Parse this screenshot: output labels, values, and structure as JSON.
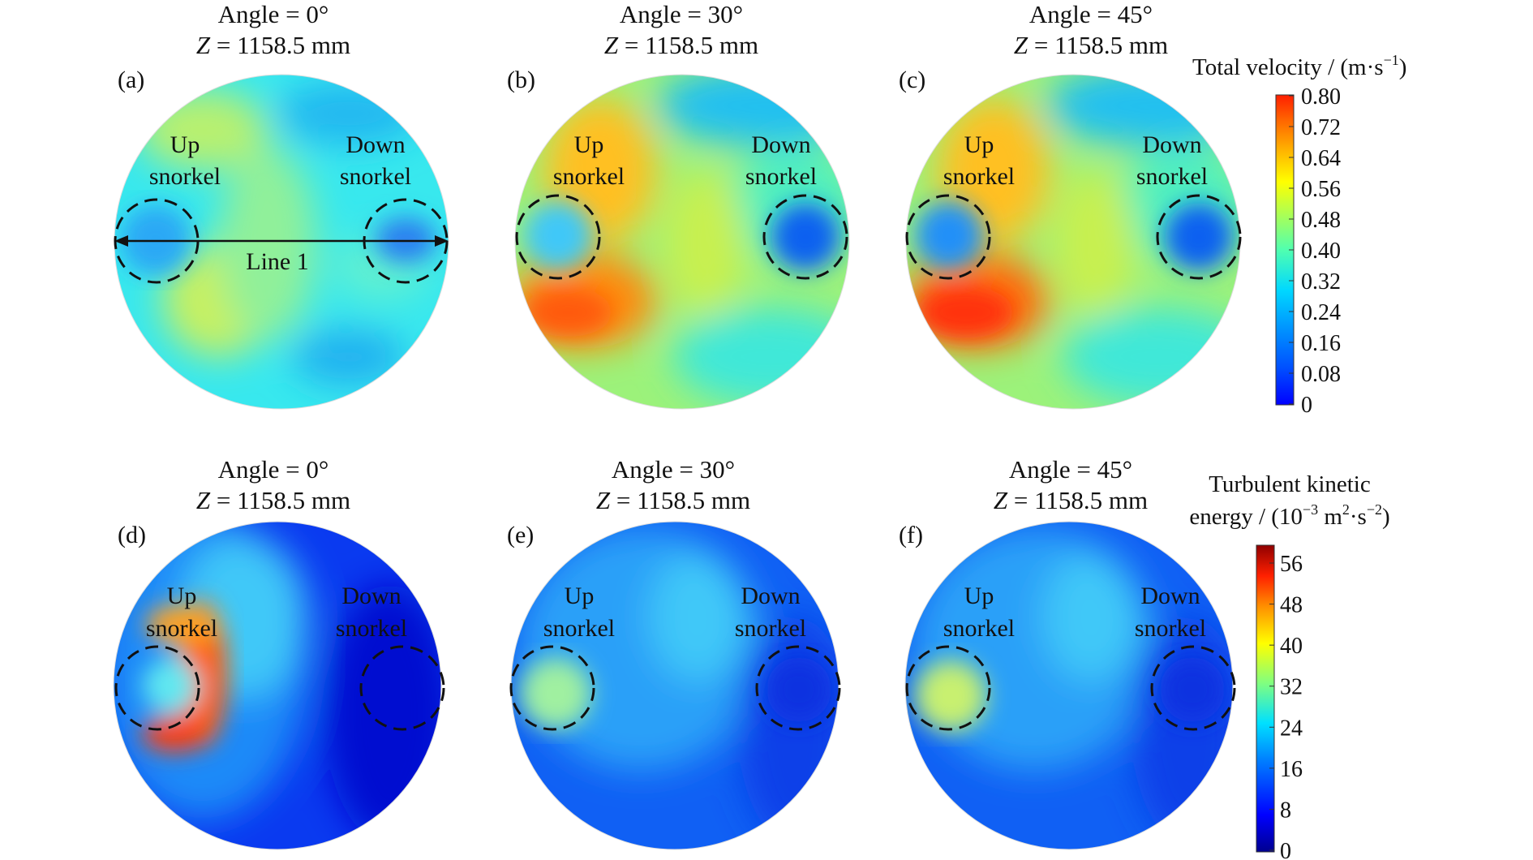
{
  "panels": [
    {
      "id": "a",
      "label": "(a)",
      "angle_text": "Angle = 0°",
      "z_var": "Z",
      "z_rest": " = 1158.5 mm",
      "up_line1": "Up",
      "up_line2": "snorkel",
      "down_line1": "Down",
      "down_line2": "snorkel",
      "line_label": "Line 1"
    },
    {
      "id": "b",
      "label": "(b)",
      "angle_text": "Angle = 30°",
      "z_var": "Z",
      "z_rest": " = 1158.5 mm",
      "up_line1": "Up",
      "up_line2": "snorkel",
      "down_line1": "Down",
      "down_line2": "snorkel"
    },
    {
      "id": "c",
      "label": "(c)",
      "angle_text": "Angle = 45°",
      "z_var": "Z",
      "z_rest": " = 1158.5 mm",
      "up_line1": "Up",
      "up_line2": "snorkel",
      "down_line1": "Down",
      "down_line2": "snorkel"
    },
    {
      "id": "d",
      "label": "(d)",
      "angle_text": "Angle = 0°",
      "z_var": "Z",
      "z_rest": " = 1158.5 mm",
      "up_line1": "Up",
      "up_line2": "snorkel",
      "down_line1": "Down",
      "down_line2": "snorkel"
    },
    {
      "id": "e",
      "label": "(e)",
      "angle_text": "Angle = 30°",
      "z_var": "Z",
      "z_rest": " = 1158.5 mm",
      "up_line1": "Up",
      "up_line2": "snorkel",
      "down_line1": "Down",
      "down_line2": "snorkel"
    },
    {
      "id": "f",
      "label": "(f)",
      "angle_text": "Angle = 45°",
      "z_var": "Z",
      "z_rest": " = 1158.5 mm",
      "up_line1": "Up",
      "up_line2": "snorkel",
      "down_line1": "Down",
      "down_line2": "snorkel"
    }
  ],
  "colorbar_velocity": {
    "title": "Total velocity / (m·s",
    "title_sup": "−1",
    "title_end": ")",
    "ticks": [
      "0.80",
      "0.72",
      "0.64",
      "0.56",
      "0.48",
      "0.40",
      "0.32",
      "0.24",
      "0.16",
      "0.08",
      "0"
    ],
    "max": 0.8,
    "min": 0
  },
  "colorbar_tke": {
    "title_line1": "Turbulent kinetic",
    "title_line2_a": "energy / (10",
    "title_line2_sup1": "−3",
    "title_line2_b": " m",
    "title_line2_sup2": "2",
    "title_line2_c": "·s",
    "title_line2_sup3": "−2",
    "title_line2_d": ")",
    "ticks": [
      "56",
      "48",
      "40",
      "32",
      "24",
      "16",
      "8",
      "0"
    ],
    "max": 60,
    "min": 0
  },
  "colormap": [
    "#00008f",
    "#0010ff",
    "#0080ff",
    "#00d8ff",
    "#40ffbf",
    "#a0ff60",
    "#ffff00",
    "#ffb000",
    "#ff5000",
    "#e00000",
    "#800000"
  ]
}
